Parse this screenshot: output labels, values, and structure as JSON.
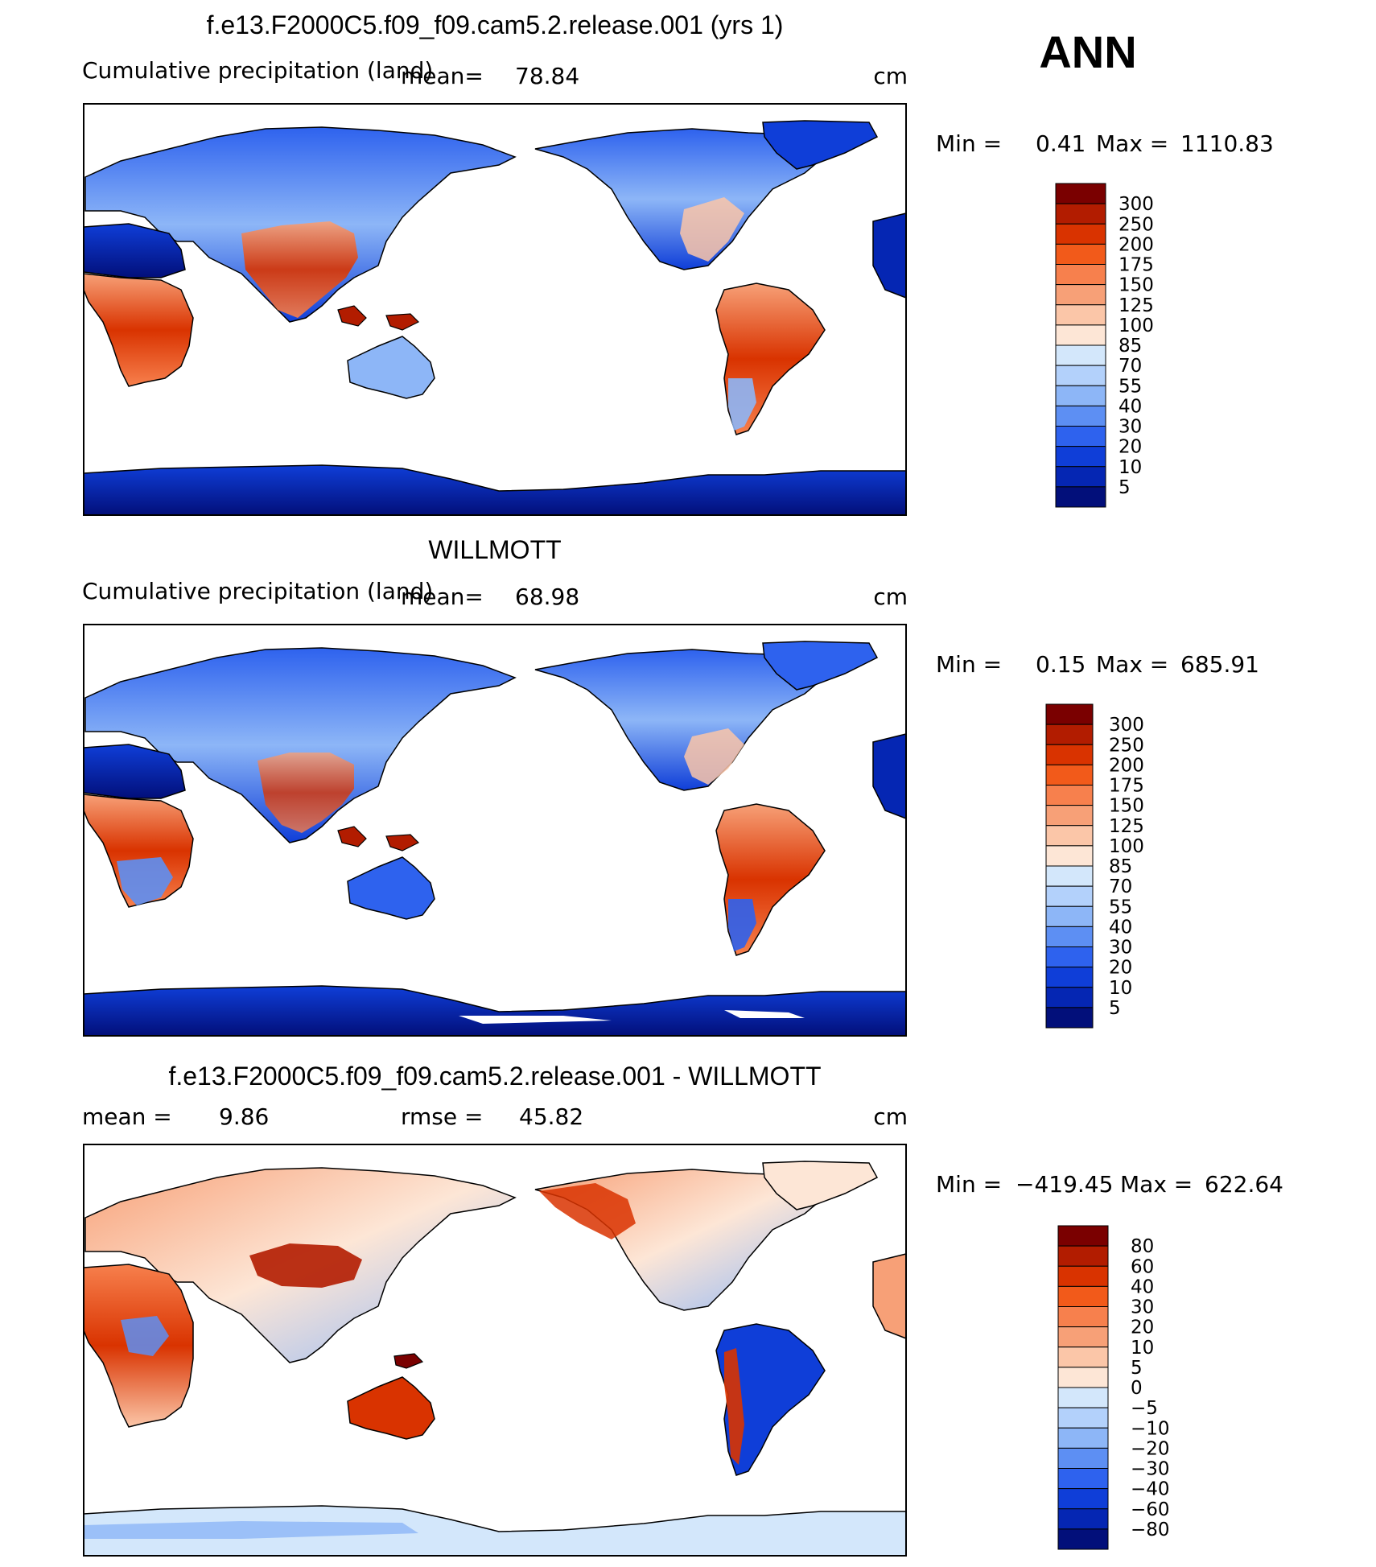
{
  "season": "ANN",
  "colors": {
    "land_outline": "#000000",
    "ocean": "#ffffff",
    "frame": "#000000"
  },
  "chart_data": [
    {
      "type": "heatmap",
      "name": "model",
      "title": "f.e13.F2000C5.f09_f09.cam5.2.release.001 (yrs 1)",
      "subtitle_left": "Cumulative precipitation (land)",
      "mean_label": "mean=",
      "mean_value": "78.84",
      "units": "cm",
      "min_label": "Min =",
      "min_value": "0.41",
      "max_label": "Max =",
      "max_value": "1110.83",
      "projection": "cylindrical equidistant, Pacific-centered",
      "colorbar": {
        "labels": [
          "300",
          "250",
          "200",
          "175",
          "150",
          "125",
          "100",
          "85",
          "70",
          "55",
          "40",
          "30",
          "20",
          "10",
          "5"
        ],
        "colors": [
          "#7a0000",
          "#b21c00",
          "#d93300",
          "#f25a1a",
          "#f7804d",
          "#f7a077",
          "#fbc6a8",
          "#fde6d6",
          "#d3e7fb",
          "#b3d1fb",
          "#8db6f7",
          "#5d8ff3",
          "#2e62ee",
          "#0f3ed8",
          "#0526b3",
          "#020f7a"
        ]
      }
    },
    {
      "type": "heatmap",
      "name": "observations",
      "title": "WILLMOTT",
      "subtitle_left": "Cumulative precipitation (land)",
      "mean_label": "mean=",
      "mean_value": "68.98",
      "units": "cm",
      "min_label": "Min =",
      "min_value": "0.15",
      "max_label": "Max =",
      "max_value": "685.91",
      "projection": "cylindrical equidistant, Pacific-centered",
      "colorbar": {
        "labels": [
          "300",
          "250",
          "200",
          "175",
          "150",
          "125",
          "100",
          "85",
          "70",
          "55",
          "40",
          "30",
          "20",
          "10",
          "5"
        ],
        "colors": [
          "#7a0000",
          "#b21c00",
          "#d93300",
          "#f25a1a",
          "#f7804d",
          "#f7a077",
          "#fbc6a8",
          "#fde6d6",
          "#d3e7fb",
          "#b3d1fb",
          "#8db6f7",
          "#5d8ff3",
          "#2e62ee",
          "#0f3ed8",
          "#0526b3",
          "#020f7a"
        ]
      }
    },
    {
      "type": "heatmap",
      "name": "difference",
      "title": "f.e13.F2000C5.f09_f09.cam5.2.release.001 - WILLMOTT",
      "mean_label": "mean =",
      "mean_value": "9.86",
      "rmse_label": "rmse =",
      "rmse_value": "45.82",
      "units": "cm",
      "min_label": "Min =",
      "min_value": "−419.45",
      "max_label": "Max =",
      "max_value": "622.64",
      "projection": "cylindrical equidistant, Pacific-centered",
      "colorbar": {
        "labels": [
          "80",
          "60",
          "40",
          "30",
          "20",
          "10",
          "5",
          "0",
          "−5",
          "−10",
          "−20",
          "−30",
          "−40",
          "−60",
          "−80"
        ],
        "colors": [
          "#7a0000",
          "#b21c00",
          "#d93300",
          "#f25a1a",
          "#f7804d",
          "#f7a077",
          "#fbc6a8",
          "#fde6d6",
          "#d3e7fb",
          "#b3d1fb",
          "#8db6f7",
          "#5d8ff3",
          "#2e62ee",
          "#0f3ed8",
          "#0526b3",
          "#020f7a"
        ]
      }
    }
  ]
}
